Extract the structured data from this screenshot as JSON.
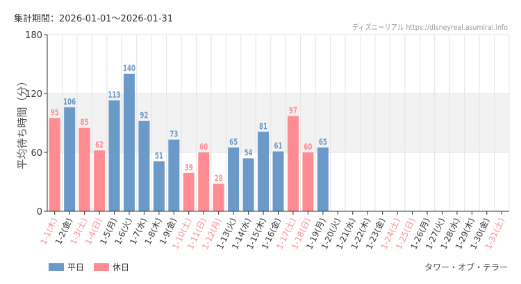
{
  "header": {
    "period": "集計期間：2026-01-01～2026-01-31",
    "credit": "ディズニーリアル https://disneyreal.asumirai.info"
  },
  "footer": {
    "attraction": "タワー・オブ・テラー"
  },
  "colors": {
    "weekday": "#6b9ac8",
    "holiday": "#ff8c92",
    "band": "#f2f2f2",
    "grid": "#e4e4e4"
  },
  "chart_data": {
    "type": "bar",
    "ylabel": "平均待ち時間（分）",
    "ylim": [
      0,
      180
    ],
    "yticks": [
      0,
      60,
      120,
      180
    ],
    "shaded_band": [
      60,
      120
    ],
    "grid": true,
    "legend_position": "bottom-left",
    "categories": [
      "1-1(木)",
      "1-2(金)",
      "1-3(土)",
      "1-4(日)",
      "1-5(月)",
      "1-6(火)",
      "1-7(水)",
      "1-8(木)",
      "1-9(金)",
      "1-10(土)",
      "1-11(日)",
      "1-12(月)",
      "1-13(火)",
      "1-14(水)",
      "1-15(木)",
      "1-16(金)",
      "1-17(土)",
      "1-18(日)",
      "1-19(月)",
      "1-20(火)",
      "1-21(水)",
      "1-22(木)",
      "1-23(金)",
      "1-24(土)",
      "1-25(日)",
      "1-26(月)",
      "1-27(火)",
      "1-28(水)",
      "1-29(木)",
      "1-30(金)",
      "1-31(土)"
    ],
    "holiday": [
      true,
      false,
      true,
      true,
      false,
      false,
      false,
      false,
      false,
      true,
      true,
      true,
      false,
      false,
      false,
      false,
      true,
      true,
      false,
      false,
      false,
      false,
      false,
      true,
      true,
      false,
      false,
      false,
      false,
      false,
      true
    ],
    "values": [
      95,
      106,
      85,
      62,
      113,
      140,
      92,
      51,
      73,
      39,
      60,
      28,
      65,
      54,
      81,
      61,
      97,
      60,
      65,
      null,
      null,
      null,
      null,
      null,
      null,
      null,
      null,
      null,
      null,
      null,
      null
    ],
    "series_legend": [
      {
        "name": "平日",
        "key": "weekday"
      },
      {
        "name": "休日",
        "key": "holiday"
      }
    ]
  }
}
